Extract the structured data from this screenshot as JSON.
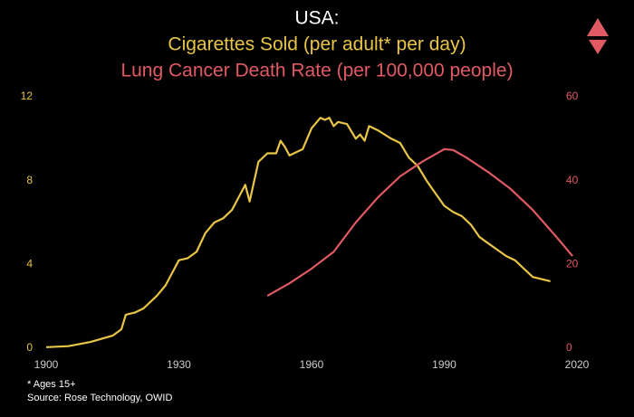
{
  "chart_data": {
    "type": "line",
    "title": "USA:",
    "notes": [
      "* Ages 15+",
      "Source: Rose Technology, OWID"
    ],
    "xlim": [
      1900,
      2020
    ],
    "xticks": [
      1900,
      1930,
      1960,
      1990,
      2020
    ],
    "ylim": [
      0,
      12
    ],
    "yticks": [
      0,
      4,
      8,
      12
    ],
    "y2lim": [
      0,
      60
    ],
    "y2ticks": [
      0,
      20,
      40,
      60
    ],
    "grid": false,
    "series": [
      {
        "name": "Cigarettes Sold (per adult* per day)",
        "color": "#e8c547",
        "x": [
          1900,
          1905,
          1910,
          1915,
          1917,
          1918,
          1920,
          1922,
          1925,
          1927,
          1929,
          1930,
          1932,
          1934,
          1936,
          1938,
          1940,
          1942,
          1944,
          1945,
          1946,
          1948,
          1950,
          1952,
          1953,
          1954,
          1955,
          1956,
          1958,
          1960,
          1962,
          1963,
          1964,
          1965,
          1966,
          1968,
          1970,
          1971,
          1972,
          1973,
          1975,
          1978,
          1980,
          1982,
          1984,
          1986,
          1988,
          1990,
          1992,
          1994,
          1996,
          1998,
          2000,
          2002,
          2004,
          2006,
          2008,
          2010,
          2012,
          2014
        ],
        "values": [
          0.05,
          0.1,
          0.3,
          0.6,
          0.9,
          1.6,
          1.7,
          1.9,
          2.5,
          3.0,
          3.8,
          4.2,
          4.3,
          4.6,
          5.5,
          6.0,
          6.2,
          6.6,
          7.4,
          7.8,
          7.0,
          8.9,
          9.3,
          9.3,
          9.9,
          9.6,
          9.2,
          9.3,
          9.5,
          10.5,
          11.0,
          10.9,
          11.0,
          10.6,
          10.8,
          10.7,
          10.0,
          10.2,
          9.9,
          10.6,
          10.4,
          10.0,
          9.8,
          9.1,
          8.7,
          8.0,
          7.4,
          6.8,
          6.5,
          6.3,
          5.9,
          5.3,
          5.0,
          4.7,
          4.4,
          4.2,
          3.8,
          3.4,
          3.3,
          3.2
        ]
      },
      {
        "name": "Lung Cancer Death Rate (per 100,000 people)",
        "color": "#e05a63",
        "axis": "y2",
        "x": [
          1950,
          1955,
          1960,
          1965,
          1970,
          1975,
          1980,
          1985,
          1990,
          1992,
          1995,
          2000,
          2005,
          2010,
          2015,
          2019
        ],
        "values": [
          12.5,
          15.5,
          19,
          23,
          30,
          36,
          41,
          44.5,
          47.5,
          47.3,
          45.5,
          42,
          38,
          33,
          27,
          22
        ]
      }
    ]
  }
}
